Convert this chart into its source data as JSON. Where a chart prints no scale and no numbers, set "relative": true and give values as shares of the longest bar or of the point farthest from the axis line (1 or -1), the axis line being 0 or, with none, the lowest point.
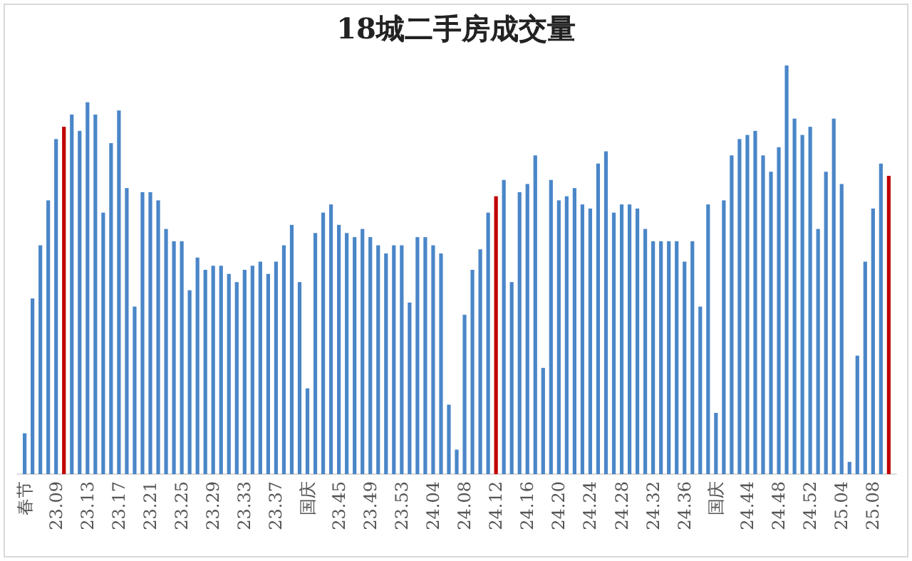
{
  "chart_data": {
    "type": "bar",
    "relative": true,
    "title": "18城二手房成交量",
    "categories": [
      "春节",
      null,
      null,
      null,
      "23.09",
      null,
      null,
      null,
      "23.13",
      null,
      null,
      null,
      "23.17",
      null,
      null,
      null,
      "23.21",
      null,
      null,
      null,
      "23.25",
      null,
      null,
      null,
      "23.29",
      null,
      null,
      null,
      "23.33",
      null,
      null,
      null,
      "23.37",
      null,
      null,
      null,
      "国庆",
      null,
      null,
      null,
      "23.45",
      null,
      null,
      null,
      "23.49",
      null,
      null,
      null,
      "23.53",
      null,
      null,
      null,
      "24.04",
      null,
      null,
      null,
      "24.08",
      null,
      null,
      null,
      "24.12",
      null,
      null,
      null,
      "24.16",
      null,
      null,
      null,
      "24.20",
      null,
      null,
      null,
      "24.24",
      null,
      null,
      null,
      "24.28",
      null,
      null,
      null,
      "24.32",
      null,
      null,
      null,
      "24.36",
      null,
      null,
      null,
      "国庆",
      null,
      null,
      null,
      "24.44",
      null,
      null,
      null,
      "24.48",
      null,
      null,
      null,
      "24.52",
      null,
      null,
      null,
      "25.04",
      null,
      null,
      null,
      "25.08",
      null,
      null
    ],
    "values": [
      0.1,
      0.43,
      0.56,
      0.67,
      0.82,
      0.85,
      0.88,
      0.84,
      0.91,
      0.88,
      0.64,
      0.81,
      0.89,
      0.7,
      0.41,
      0.69,
      0.69,
      0.67,
      0.6,
      0.57,
      0.57,
      0.45,
      0.53,
      0.5,
      0.51,
      0.51,
      0.49,
      0.47,
      0.5,
      0.51,
      0.52,
      0.49,
      0.52,
      0.56,
      0.61,
      0.47,
      0.21,
      0.59,
      0.64,
      0.66,
      0.61,
      0.59,
      0.58,
      0.6,
      0.58,
      0.56,
      0.54,
      0.56,
      0.56,
      0.42,
      0.58,
      0.58,
      0.56,
      0.54,
      0.17,
      0.06,
      0.39,
      0.5,
      0.55,
      0.64,
      0.68,
      0.72,
      0.47,
      0.69,
      0.71,
      0.78,
      0.26,
      0.72,
      0.67,
      0.68,
      0.7,
      0.66,
      0.65,
      0.76,
      0.79,
      0.64,
      0.66,
      0.66,
      0.65,
      0.6,
      0.57,
      0.57,
      0.57,
      0.57,
      0.52,
      0.57,
      0.41,
      0.66,
      0.15,
      0.67,
      0.78,
      0.82,
      0.83,
      0.84,
      0.78,
      0.74,
      0.8,
      1.0,
      0.87,
      0.83,
      0.85,
      0.6,
      0.74,
      0.87,
      0.71,
      0.03,
      0.29,
      0.52,
      0.65,
      0.76,
      0.73
    ],
    "colors": [
      "#4a86c8",
      "#4a86c8",
      "#4a86c8",
      "#4a86c8",
      "#4a86c8",
      "#c00000",
      "#4a86c8",
      "#4a86c8",
      "#4a86c8",
      "#4a86c8",
      "#4a86c8",
      "#4a86c8",
      "#4a86c8",
      "#4a86c8",
      "#4a86c8",
      "#4a86c8",
      "#4a86c8",
      "#4a86c8",
      "#4a86c8",
      "#4a86c8",
      "#4a86c8",
      "#4a86c8",
      "#4a86c8",
      "#4a86c8",
      "#4a86c8",
      "#4a86c8",
      "#4a86c8",
      "#4a86c8",
      "#4a86c8",
      "#4a86c8",
      "#4a86c8",
      "#4a86c8",
      "#4a86c8",
      "#4a86c8",
      "#4a86c8",
      "#4a86c8",
      "#4a86c8",
      "#4a86c8",
      "#4a86c8",
      "#4a86c8",
      "#4a86c8",
      "#4a86c8",
      "#4a86c8",
      "#4a86c8",
      "#4a86c8",
      "#4a86c8",
      "#4a86c8",
      "#4a86c8",
      "#4a86c8",
      "#4a86c8",
      "#4a86c8",
      "#4a86c8",
      "#4a86c8",
      "#4a86c8",
      "#4a86c8",
      "#4a86c8",
      "#4a86c8",
      "#4a86c8",
      "#4a86c8",
      "#4a86c8",
      "#c00000",
      "#4a86c8",
      "#4a86c8",
      "#4a86c8",
      "#4a86c8",
      "#4a86c8",
      "#4a86c8",
      "#4a86c8",
      "#4a86c8",
      "#4a86c8",
      "#4a86c8",
      "#4a86c8",
      "#4a86c8",
      "#4a86c8",
      "#4a86c8",
      "#4a86c8",
      "#4a86c8",
      "#4a86c8",
      "#4a86c8",
      "#4a86c8",
      "#4a86c8",
      "#4a86c8",
      "#4a86c8",
      "#4a86c8",
      "#4a86c8",
      "#4a86c8",
      "#4a86c8",
      "#4a86c8",
      "#4a86c8",
      "#4a86c8",
      "#4a86c8",
      "#4a86c8",
      "#4a86c8",
      "#4a86c8",
      "#4a86c8",
      "#4a86c8",
      "#4a86c8",
      "#4a86c8",
      "#4a86c8",
      "#4a86c8",
      "#4a86c8",
      "#4a86c8",
      "#4a86c8",
      "#4a86c8",
      "#4a86c8",
      "#4a86c8",
      "#4a86c8",
      "#4a86c8",
      "#4a86c8",
      "#4a86c8",
      "#c00000"
    ]
  }
}
